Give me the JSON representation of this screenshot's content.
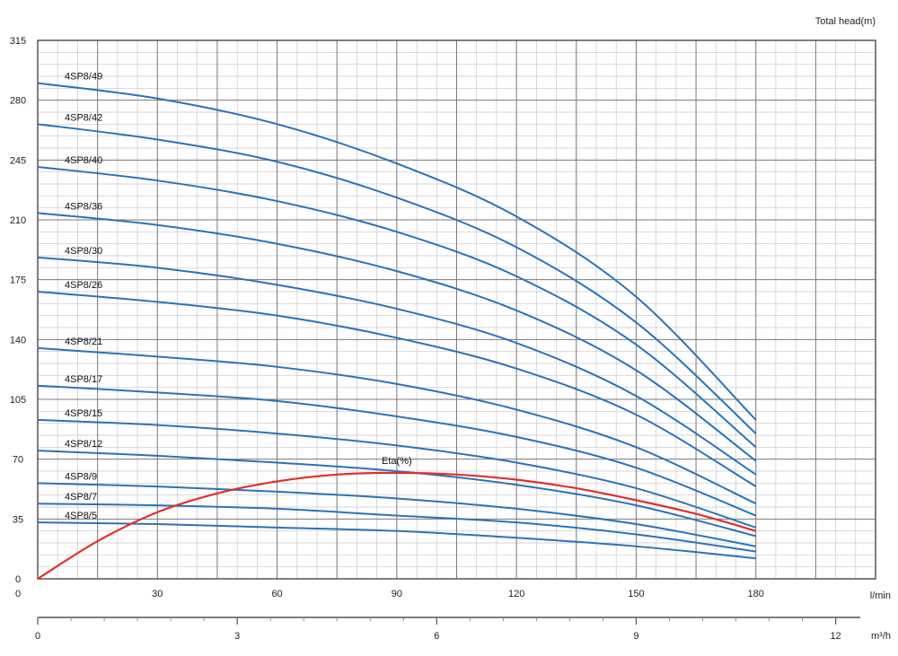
{
  "chart_data": {
    "type": "line",
    "ylabel": "Total head(m)",
    "xlabel": "l/min",
    "xlabel2": "m³/h",
    "xlim": [
      0,
      180
    ],
    "ylim": [
      0,
      315
    ],
    "x2lim": [
      0,
      12
    ],
    "y_ticks": [
      0,
      35,
      70,
      105,
      140,
      175,
      210,
      245,
      280,
      315
    ],
    "x_ticks": [
      30,
      60,
      90,
      120,
      150,
      180
    ],
    "x2_ticks": [
      0,
      3,
      6,
      9,
      12
    ],
    "grid": true,
    "series": [
      {
        "name": "4SP8/49",
        "x": [
          0,
          30,
          60,
          90,
          120,
          150,
          180
        ],
        "y": [
          290,
          281,
          266,
          243,
          212,
          165,
          93
        ]
      },
      {
        "name": "4SP8/42",
        "x": [
          0,
          30,
          60,
          90,
          120,
          150,
          180
        ],
        "y": [
          266,
          257,
          244,
          223,
          194,
          150,
          85
        ]
      },
      {
        "name": "4SP8/40",
        "x": [
          0,
          30,
          60,
          90,
          120,
          150,
          180
        ],
        "y": [
          241,
          233,
          221,
          203,
          177,
          137,
          77
        ]
      },
      {
        "name": "4SP8/36",
        "x": [
          0,
          30,
          60,
          90,
          120,
          150,
          180
        ],
        "y": [
          214,
          207,
          196,
          180,
          157,
          122,
          69
        ]
      },
      {
        "name": "4SP8/30",
        "x": [
          0,
          30,
          60,
          90,
          120,
          150,
          180
        ],
        "y": [
          188,
          182,
          172,
          158,
          138,
          107,
          61
        ]
      },
      {
        "name": "4SP8/26",
        "x": [
          0,
          30,
          60,
          90,
          120,
          150,
          180
        ],
        "y": [
          168,
          162,
          154,
          141,
          123,
          96,
          54
        ]
      },
      {
        "name": "4SP8/21",
        "x": [
          0,
          30,
          60,
          90,
          120,
          150,
          180
        ],
        "y": [
          135,
          130,
          124,
          114,
          99,
          77,
          44
        ]
      },
      {
        "name": "4SP8/17",
        "x": [
          0,
          30,
          60,
          90,
          120,
          150,
          180
        ],
        "y": [
          113,
          109,
          104,
          95,
          83,
          65,
          37
        ]
      },
      {
        "name": "4SP8/15",
        "x": [
          0,
          30,
          60,
          90,
          120,
          150,
          180
        ],
        "y": [
          93,
          90,
          85,
          78,
          68,
          53,
          30
        ]
      },
      {
        "name": "4SP8/12",
        "x": [
          0,
          30,
          60,
          90,
          120,
          150,
          180
        ],
        "y": [
          75,
          72,
          68,
          63,
          55,
          43,
          25
        ]
      },
      {
        "name": "4SP8/9",
        "x": [
          0,
          30,
          60,
          90,
          120,
          150,
          180
        ],
        "y": [
          56,
          54,
          51,
          47,
          41,
          32,
          19
        ]
      },
      {
        "name": "4SP8/7",
        "x": [
          0,
          30,
          60,
          90,
          120,
          150,
          180
        ],
        "y": [
          44,
          43,
          41,
          37,
          33,
          26,
          16
        ]
      },
      {
        "name": "4SP8/5",
        "x": [
          0,
          30,
          60,
          90,
          120,
          150,
          180
        ],
        "y": [
          33,
          32,
          30,
          28,
          24,
          19,
          12
        ]
      },
      {
        "name": "Eta(%)",
        "x": [
          0,
          15,
          30,
          45,
          60,
          75,
          90,
          105,
          120,
          135,
          150,
          165,
          180
        ],
        "y": [
          0,
          22,
          39,
          50,
          57,
          61,
          62,
          61,
          58,
          53,
          46,
          38,
          28
        ],
        "color": "#e0302b"
      }
    ]
  },
  "colors": {
    "curve": "#2a73b8",
    "eta": "#e0302b",
    "grid_major": "#7a7a7a",
    "grid_minor": "#c8c8c8"
  }
}
